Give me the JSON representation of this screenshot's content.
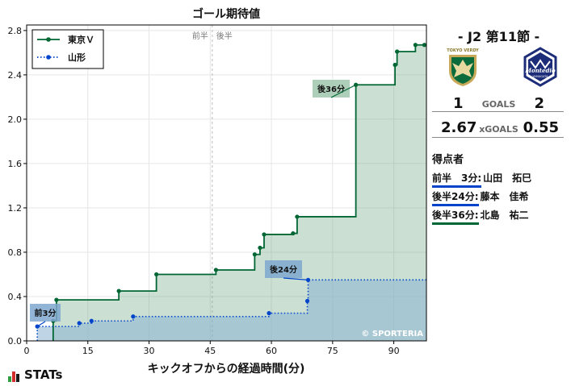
{
  "chart_data": {
    "type": "line",
    "title": "ゴール期待値",
    "xlabel": "キックオフからの経過時間(分)",
    "ylabel": "",
    "xlim": [
      0,
      98
    ],
    "ylim": [
      0,
      2.85
    ],
    "xticks": [
      0,
      15,
      30,
      45,
      60,
      75,
      90
    ],
    "yticks": [
      0.0,
      0.4,
      0.8,
      1.2,
      1.6,
      2.0,
      2.4,
      2.8
    ],
    "xtick_labels": [
      "0",
      "15",
      "30",
      "45",
      "60",
      "75",
      "90"
    ],
    "ytick_labels": [
      "0.0",
      "0.4",
      "0.8",
      "1.2",
      "1.6",
      "2.0",
      "2.4",
      "2.8"
    ],
    "halftime_x": 45.5,
    "halftime_label": "前半　後半",
    "legend_position": "top-left",
    "series": [
      {
        "name": "東京Ｖ",
        "style": "solid-step",
        "color": "#006633",
        "fill": "#6aa77f",
        "x": [
          6.5,
          7.3,
          22.6,
          31.8,
          46.4,
          55.9,
          57.2,
          58.2,
          65.3,
          66.3,
          80.7,
          90.3,
          90.8,
          95.3,
          97.5
        ],
        "y": [
          0.18,
          0.37,
          0.45,
          0.6,
          0.64,
          0.78,
          0.84,
          0.96,
          0.97,
          1.12,
          2.31,
          2.49,
          2.61,
          2.67,
          2.67
        ]
      },
      {
        "name": "山形",
        "style": "dotted-step",
        "color": "#0044cc",
        "fill": "#8ab2d2",
        "x": [
          2.6,
          12.9,
          15.9,
          26.1,
          59.4,
          68.8,
          69.0,
          98.0
        ],
        "y": [
          0.13,
          0.16,
          0.18,
          0.22,
          0.25,
          0.36,
          0.55,
          0.55
        ]
      }
    ],
    "goal_annotations": [
      {
        "label": "前3分",
        "x": 2.6,
        "y": 0.13,
        "color": "#0044cc"
      },
      {
        "label": "後24分",
        "x": 68.9,
        "y": 0.55,
        "color": "#0044cc"
      },
      {
        "label": "後36分",
        "x": 80.7,
        "y": 2.31,
        "color": "#006633"
      }
    ],
    "watermark": "© SPORTERIA"
  },
  "match": {
    "title": "-  J2 第11節  -",
    "home_score": "1",
    "away_score": "2",
    "goals_label": "GOALS",
    "home_xg": "2.67",
    "away_xg": "0.55",
    "xg_label": "xGOALS",
    "home_logo_text": "TOKYO VERDY",
    "away_logo_text": "Montedio",
    "away_logo_subtext": "YAMAGATA"
  },
  "scorers": {
    "heading": "得点者",
    "items": [
      {
        "time": "前半　3分:",
        "name": "山田　拓巳",
        "color": "#0044cc"
      },
      {
        "time": "後半24分:",
        "name": "藤本　佳希",
        "color": "#0044cc"
      },
      {
        "time": "後半36分:",
        "name": "北島　祐二",
        "color": "#006633"
      }
    ]
  },
  "brand": {
    "stats_label": "STATs"
  }
}
